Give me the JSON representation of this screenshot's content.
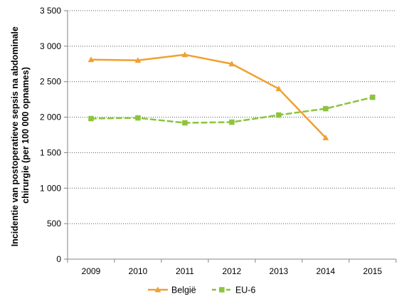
{
  "chart_data": {
    "type": "line",
    "title": "",
    "xlabel": "",
    "ylabel_lines": [
      "Incidentie van postoperatieve sepsis na abdominale",
      "chirurgie (per 100 000 opnames)"
    ],
    "categories": [
      "2009",
      "2010",
      "2011",
      "2012",
      "2013",
      "2014",
      "2015"
    ],
    "ylim": [
      0,
      3500
    ],
    "y_ticks": [
      0,
      500,
      1000,
      1500,
      2000,
      2500,
      3000,
      3500
    ],
    "y_tick_labels": [
      "0",
      "500",
      "1 000",
      "1 500",
      "2 000",
      "2 500",
      "3 000",
      "3 500"
    ],
    "grid": "horizontal-dotted",
    "legend_position": "bottom",
    "series": [
      {
        "name": "België",
        "color": "#F0A030",
        "line_style": "solid",
        "marker": "triangle",
        "values": [
          2810,
          2800,
          2880,
          2750,
          2400,
          1710,
          null
        ]
      },
      {
        "name": "EU-6",
        "color": "#8CC43C",
        "line_style": "dashed",
        "marker": "square",
        "values": [
          1980,
          1990,
          1920,
          1930,
          2030,
          2120,
          2280
        ]
      }
    ]
  }
}
